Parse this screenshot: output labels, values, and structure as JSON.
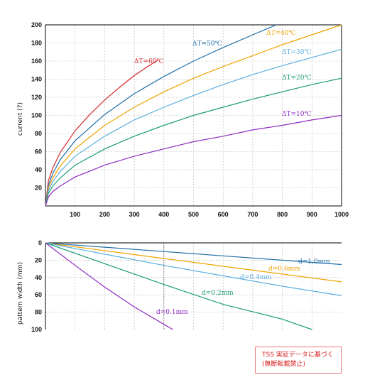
{
  "chart_data": [
    {
      "type": "line",
      "title": "",
      "xlabel": "",
      "ylabel": "current (?)",
      "xlim": [
        0,
        1000
      ],
      "ylim": [
        0,
        200
      ],
      "xticks": [
        100,
        200,
        300,
        400,
        500,
        600,
        700,
        800,
        900,
        1000
      ],
      "yticks": [
        20,
        40,
        60,
        80,
        100,
        120,
        140,
        160,
        180,
        200
      ],
      "grid": true,
      "series": [
        {
          "name": "ΔT=60℃",
          "color": "#d62728",
          "x": [
            0,
            10,
            25,
            50,
            100,
            150,
            200,
            250,
            300,
            350,
            380
          ],
          "y": [
            0,
            28,
            42,
            59,
            83,
            101,
            117,
            131,
            144,
            155,
            161
          ]
        },
        {
          "name": "ΔT=50℃",
          "color": "#1f6fa8",
          "x": [
            0,
            10,
            25,
            50,
            100,
            200,
            300,
            400,
            500,
            600,
            700,
            780
          ],
          "y": [
            0,
            23,
            36,
            51,
            72,
            101,
            124,
            143,
            160,
            175,
            189,
            200
          ]
        },
        {
          "name": "ΔT=40℃",
          "color": "#f0a300",
          "x": [
            0,
            10,
            25,
            50,
            100,
            200,
            300,
            400,
            500,
            600,
            700,
            800,
            900,
            1000
          ],
          "y": [
            0,
            20,
            31,
            44,
            63,
            89,
            109,
            126,
            141,
            154,
            166,
            178,
            189,
            200
          ]
        },
        {
          "name": "ΔT=30℃",
          "color": "#5aaee0",
          "x": [
            0,
            10,
            25,
            50,
            100,
            200,
            300,
            400,
            500,
            600,
            700,
            800,
            900,
            1000
          ],
          "y": [
            0,
            17,
            27,
            38,
            55,
            77,
            95,
            109,
            122,
            134,
            145,
            155,
            164,
            173
          ]
        },
        {
          "name": "ΔT=20℃",
          "color": "#1a9a78",
          "x": [
            0,
            10,
            25,
            50,
            100,
            200,
            300,
            400,
            500,
            600,
            700,
            800,
            900,
            1000
          ],
          "y": [
            0,
            14,
            22,
            31,
            45,
            63,
            77,
            89,
            100,
            109,
            118,
            126,
            134,
            141
          ]
        },
        {
          "name": "ΔT=10℃",
          "color": "#8e2bc4",
          "x": [
            0,
            10,
            25,
            50,
            100,
            200,
            300,
            400,
            500,
            600,
            700,
            800,
            900,
            1000
          ],
          "y": [
            0,
            10,
            16,
            22,
            32,
            45,
            55,
            63,
            71,
            77,
            84,
            89,
            95,
            100
          ]
        }
      ],
      "labels": [
        {
          "text": "ΔT=60℃",
          "series": 0
        },
        {
          "text": "ΔT=50℃",
          "series": 1
        },
        {
          "text": "ΔT=40℃",
          "series": 2
        },
        {
          "text": "ΔT=30℃",
          "series": 3
        },
        {
          "text": "ΔT=20℃",
          "series": 4
        },
        {
          "text": "ΔT=10℃",
          "series": 5
        }
      ]
    },
    {
      "type": "line",
      "title": "",
      "xlabel": "",
      "ylabel": "pattern width (mm)",
      "xlim": [
        0,
        1000
      ],
      "ylim": [
        0,
        100
      ],
      "y_inverted": true,
      "yticks": [
        0,
        20,
        40,
        60,
        80,
        100
      ],
      "grid": true,
      "series": [
        {
          "name": "d=1.0mm",
          "color": "#1f6fa8",
          "x": [
            0,
            200,
            400,
            600,
            800,
            1000
          ],
          "y": [
            0,
            5,
            10,
            15,
            20,
            25
          ]
        },
        {
          "name": "d=0.6mm",
          "color": "#f0a300",
          "x": [
            0,
            200,
            400,
            600,
            800,
            1000
          ],
          "y": [
            0,
            9,
            18,
            27,
            36,
            45
          ]
        },
        {
          "name": "d=0.4mm",
          "color": "#5aaee0",
          "x": [
            0,
            200,
            400,
            600,
            800,
            1000
          ],
          "y": [
            0,
            13,
            26,
            38,
            50,
            61
          ]
        },
        {
          "name": "d=0.2mm",
          "color": "#1a9a78",
          "x": [
            0,
            200,
            400,
            600,
            800,
            900
          ],
          "y": [
            0,
            24,
            48,
            71,
            88,
            100
          ]
        },
        {
          "name": "d=0.1mm",
          "color": "#8e2bc4",
          "x": [
            0,
            100,
            200,
            300,
            400,
            430
          ],
          "y": [
            0,
            26,
            51,
            74,
            94,
            100
          ]
        }
      ],
      "labels": [
        {
          "text": "d=1.0mm",
          "series": 0
        },
        {
          "text": "d=0.6mm",
          "series": 1
        },
        {
          "text": "d=0.4mm",
          "series": 2
        },
        {
          "text": "d=0.2mm",
          "series": 3
        },
        {
          "text": "d=0.1mm",
          "series": 4
        }
      ]
    }
  ],
  "note": {
    "line1": "TSS 実証データに基づく",
    "line2": "(無断転載禁止)",
    "color": "#d81e1e"
  }
}
